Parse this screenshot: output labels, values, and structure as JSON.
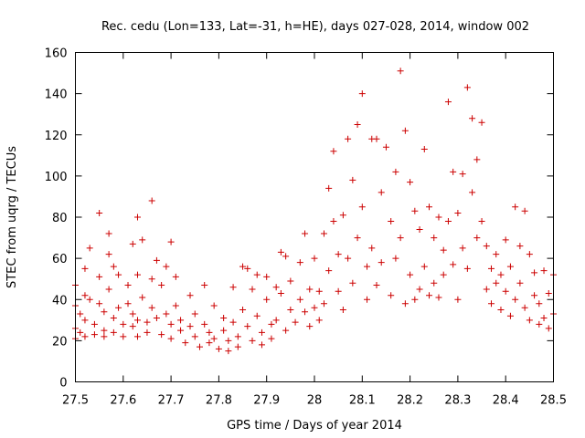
{
  "chart_data": {
    "type": "scatter",
    "title": "Rec. cedu (Lon=133, Lat=-31, h=HE), days 027-028, 2014, window 002",
    "xlabel": "GPS time / Days of year 2014",
    "ylabel": "STEC from uqrg / TECUs",
    "xlim": [
      27.5,
      28.5
    ],
    "ylim": [
      0,
      160
    ],
    "xticks": [
      "27.5",
      "27.6",
      "27.7",
      "27.8",
      "27.9",
      "28",
      "28.1",
      "28.2",
      "28.3",
      "28.4",
      "28.5"
    ],
    "yticks": [
      "0",
      "20",
      "40",
      "60",
      "80",
      "100",
      "120",
      "140",
      "160"
    ],
    "marker": "plus",
    "color": "#cc0000",
    "series": [
      {
        "name": "STEC",
        "points": [
          [
            27.5,
            47
          ],
          [
            27.5,
            37
          ],
          [
            27.5,
            26
          ],
          [
            27.5,
            21
          ],
          [
            27.51,
            33
          ],
          [
            27.51,
            24
          ],
          [
            27.52,
            55
          ],
          [
            27.52,
            42
          ],
          [
            27.52,
            30
          ],
          [
            27.52,
            22
          ],
          [
            27.53,
            65
          ],
          [
            27.53,
            40
          ],
          [
            27.54,
            28
          ],
          [
            27.54,
            23
          ],
          [
            27.55,
            82
          ],
          [
            27.55,
            51
          ],
          [
            27.55,
            38
          ],
          [
            27.56,
            34
          ],
          [
            27.56,
            25
          ],
          [
            27.56,
            22
          ],
          [
            27.57,
            72
          ],
          [
            27.57,
            62
          ],
          [
            27.57,
            45
          ],
          [
            27.58,
            56
          ],
          [
            27.58,
            31
          ],
          [
            27.58,
            24
          ],
          [
            27.59,
            52
          ],
          [
            27.59,
            36
          ],
          [
            27.6,
            22
          ],
          [
            27.6,
            28
          ],
          [
            27.61,
            47
          ],
          [
            27.61,
            38
          ],
          [
            27.62,
            67
          ],
          [
            27.62,
            33
          ],
          [
            27.62,
            27
          ],
          [
            27.63,
            80
          ],
          [
            27.63,
            52
          ],
          [
            27.63,
            30
          ],
          [
            27.63,
            22
          ],
          [
            27.64,
            69
          ],
          [
            27.64,
            41
          ],
          [
            27.65,
            29
          ],
          [
            27.65,
            24
          ],
          [
            27.66,
            88
          ],
          [
            27.66,
            50
          ],
          [
            27.66,
            36
          ],
          [
            27.67,
            59
          ],
          [
            27.67,
            31
          ],
          [
            27.68,
            47
          ],
          [
            27.68,
            23
          ],
          [
            27.69,
            56
          ],
          [
            27.69,
            33
          ],
          [
            27.7,
            68
          ],
          [
            27.7,
            28
          ],
          [
            27.7,
            21
          ],
          [
            27.71,
            51
          ],
          [
            27.71,
            37
          ],
          [
            27.72,
            30
          ],
          [
            27.72,
            25
          ],
          [
            27.73,
            19
          ],
          [
            27.74,
            42
          ],
          [
            27.74,
            27
          ],
          [
            27.75,
            33
          ],
          [
            27.75,
            22
          ],
          [
            27.76,
            17
          ],
          [
            27.77,
            47
          ],
          [
            27.77,
            28
          ],
          [
            27.78,
            24
          ],
          [
            27.78,
            19
          ],
          [
            27.79,
            37
          ],
          [
            27.79,
            21
          ],
          [
            27.8,
            16
          ],
          [
            27.81,
            31
          ],
          [
            27.81,
            25
          ],
          [
            27.82,
            20
          ],
          [
            27.82,
            15
          ],
          [
            27.83,
            46
          ],
          [
            27.83,
            29
          ],
          [
            27.84,
            22
          ],
          [
            27.84,
            17
          ],
          [
            27.85,
            56
          ],
          [
            27.85,
            35
          ],
          [
            27.86,
            55
          ],
          [
            27.86,
            27
          ],
          [
            27.87,
            45
          ],
          [
            27.87,
            20
          ],
          [
            27.88,
            52
          ],
          [
            27.88,
            32
          ],
          [
            27.89,
            24
          ],
          [
            27.89,
            18
          ],
          [
            27.9,
            51
          ],
          [
            27.9,
            40
          ],
          [
            27.91,
            28
          ],
          [
            27.91,
            21
          ],
          [
            27.92,
            46
          ],
          [
            27.92,
            30
          ],
          [
            27.93,
            63
          ],
          [
            27.93,
            43
          ],
          [
            27.94,
            61
          ],
          [
            27.94,
            25
          ],
          [
            27.95,
            49
          ],
          [
            27.95,
            35
          ],
          [
            27.96,
            29
          ],
          [
            27.97,
            58
          ],
          [
            27.97,
            40
          ],
          [
            27.98,
            72
          ],
          [
            27.98,
            34
          ],
          [
            27.99,
            45
          ],
          [
            27.99,
            27
          ],
          [
            28.0,
            60
          ],
          [
            28.0,
            36
          ],
          [
            28.01,
            44
          ],
          [
            28.01,
            30
          ],
          [
            28.02,
            72
          ],
          [
            28.02,
            38
          ],
          [
            28.03,
            94
          ],
          [
            28.03,
            54
          ],
          [
            28.04,
            112
          ],
          [
            28.04,
            78
          ],
          [
            28.05,
            62
          ],
          [
            28.05,
            44
          ],
          [
            28.06,
            81
          ],
          [
            28.06,
            35
          ],
          [
            28.07,
            118
          ],
          [
            28.07,
            60
          ],
          [
            28.08,
            98
          ],
          [
            28.08,
            48
          ],
          [
            28.09,
            125
          ],
          [
            28.09,
            70
          ],
          [
            28.1,
            140
          ],
          [
            28.1,
            85
          ],
          [
            28.11,
            56
          ],
          [
            28.11,
            40
          ],
          [
            28.12,
            118
          ],
          [
            28.12,
            65
          ],
          [
            28.13,
            118
          ],
          [
            28.13,
            47
          ],
          [
            28.14,
            92
          ],
          [
            28.14,
            58
          ],
          [
            28.15,
            114
          ],
          [
            28.16,
            78
          ],
          [
            28.16,
            42
          ],
          [
            28.17,
            102
          ],
          [
            28.17,
            60
          ],
          [
            28.18,
            151
          ],
          [
            28.18,
            70
          ],
          [
            28.19,
            122
          ],
          [
            28.19,
            38
          ],
          [
            28.2,
            97
          ],
          [
            28.2,
            52
          ],
          [
            28.21,
            83
          ],
          [
            28.21,
            40
          ],
          [
            28.22,
            74
          ],
          [
            28.22,
            45
          ],
          [
            28.23,
            113
          ],
          [
            28.23,
            56
          ],
          [
            28.24,
            85
          ],
          [
            28.24,
            42
          ],
          [
            28.25,
            70
          ],
          [
            28.25,
            48
          ],
          [
            28.26,
            80
          ],
          [
            28.26,
            41
          ],
          [
            28.27,
            64
          ],
          [
            28.27,
            52
          ],
          [
            28.28,
            136
          ],
          [
            28.28,
            78
          ],
          [
            28.29,
            102
          ],
          [
            28.29,
            57
          ],
          [
            28.3,
            82
          ],
          [
            28.3,
            40
          ],
          [
            28.31,
            101
          ],
          [
            28.31,
            65
          ],
          [
            28.32,
            143
          ],
          [
            28.32,
            55
          ],
          [
            28.33,
            128
          ],
          [
            28.33,
            92
          ],
          [
            28.34,
            108
          ],
          [
            28.34,
            70
          ],
          [
            28.35,
            126
          ],
          [
            28.35,
            78
          ],
          [
            28.36,
            66
          ],
          [
            28.36,
            45
          ],
          [
            28.37,
            55
          ],
          [
            28.37,
            38
          ],
          [
            28.38,
            62
          ],
          [
            28.38,
            48
          ],
          [
            28.39,
            52
          ],
          [
            28.39,
            35
          ],
          [
            28.4,
            69
          ],
          [
            28.4,
            44
          ],
          [
            28.41,
            56
          ],
          [
            28.41,
            32
          ],
          [
            28.42,
            85
          ],
          [
            28.42,
            40
          ],
          [
            28.43,
            66
          ],
          [
            28.43,
            48
          ],
          [
            28.44,
            83
          ],
          [
            28.44,
            36
          ],
          [
            28.45,
            62
          ],
          [
            28.45,
            30
          ],
          [
            28.46,
            53
          ],
          [
            28.46,
            42
          ],
          [
            28.47,
            38
          ],
          [
            28.47,
            28
          ],
          [
            28.48,
            54
          ],
          [
            28.48,
            31
          ],
          [
            28.49,
            43
          ],
          [
            28.49,
            26
          ],
          [
            28.5,
            52
          ],
          [
            28.5,
            33
          ]
        ]
      }
    ]
  }
}
